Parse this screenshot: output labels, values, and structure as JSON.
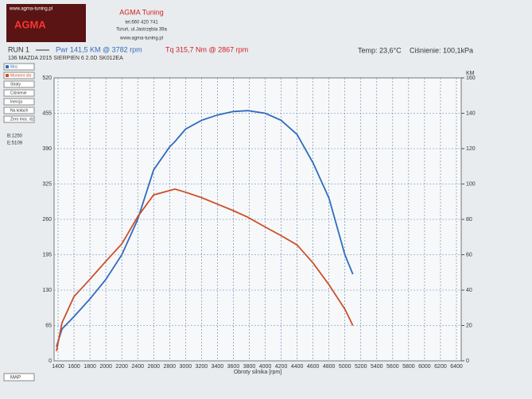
{
  "header": {
    "logo_url": "www.agma-tuning.pl",
    "logo": "AGMA",
    "company": "AGMA Tuning",
    "phone": "tel.660 420 741",
    "address": "Toruń, ul.Jastrzębia 39a",
    "website": "www.agma-tuning.pl",
    "run": "RUN 1",
    "power_peak": "Pwr 141,5 KM @ 3782 rpm",
    "torque_peak": "Tq 315,7 Nm @ 2867 rpm",
    "temperature": "Temp: 23,6°C",
    "pressure": "Ciśnienie: 100,1kPa",
    "vehicle": "136 MAZDA 2015 SIERPIEN 6 2.0D SK012EA"
  },
  "panel": {
    "items": [
      "Straty",
      "Ciśnienie",
      "Inercja",
      "Na kołach",
      "Zero moc. dz"
    ],
    "begin": "B:1250",
    "end": "E:5109",
    "map": "MAP"
  },
  "chart_data": {
    "type": "line",
    "x_label": "Obroty silnika [rpm]",
    "y2_label": "KM",
    "x": [
      1380,
      1450,
      1600,
      1800,
      2000,
      2200,
      2400,
      2600,
      2800,
      2867,
      3000,
      3200,
      3400,
      3600,
      3782,
      4000,
      4200,
      4400,
      4600,
      4800,
      5000,
      5100
    ],
    "series": [
      {
        "name": "Moc",
        "color": "#2f6cc0",
        "axis": "y2",
        "values": [
          8,
          18,
          25,
          35,
          46,
          60,
          80,
          108,
          121,
          124,
          131,
          136,
          139,
          141,
          141.5,
          140,
          136,
          128,
          112,
          92,
          60,
          49
        ]
      },
      {
        "name": "Moment obr.",
        "color": "#cc4f28",
        "values": [
          18,
          70,
          118,
          150,
          183,
          215,
          265,
          305,
          313,
          315.7,
          310,
          300,
          288,
          276,
          264,
          246,
          230,
          213,
          180,
          140,
          95,
          65
        ]
      }
    ],
    "xlim": [
      1350,
      6460
    ],
    "xticks": [
      1400,
      1600,
      1800,
      2000,
      2200,
      2400,
      2600,
      2800,
      3000,
      3200,
      3400,
      3600,
      3800,
      4000,
      4200,
      4400,
      4600,
      4800,
      5000,
      5200,
      5400,
      5600,
      5800,
      6000,
      6200,
      6400
    ],
    "ylim": [
      0,
      520
    ],
    "yticks": [
      0,
      65,
      130,
      195,
      260,
      325,
      390,
      455,
      520
    ],
    "y2lim": [
      0,
      160
    ],
    "y2ticks": [
      0,
      20,
      40,
      60,
      80,
      100,
      120,
      140,
      160
    ],
    "grid": true
  }
}
